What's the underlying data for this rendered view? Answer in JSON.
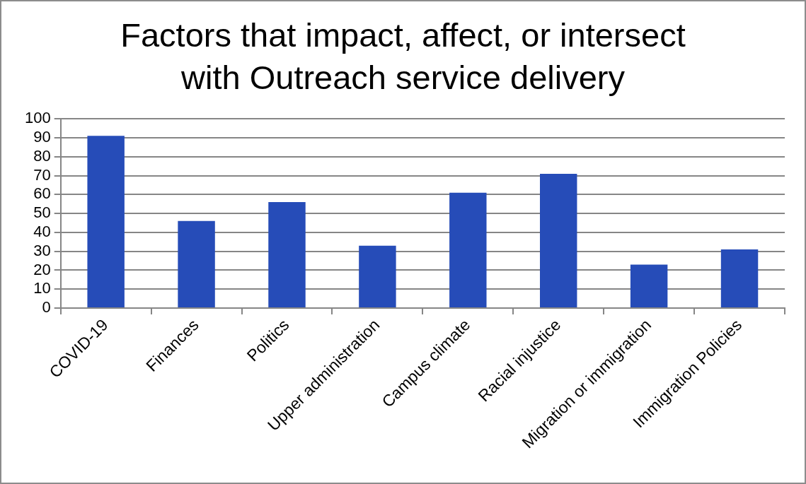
{
  "chart_data": {
    "type": "bar",
    "title": "Factors that impact, affect, or intersect with Outreach service delivery",
    "categories": [
      "COVID-19",
      "Finances",
      "Politics",
      "Upper administration",
      "Campus climate",
      "Racial injustice",
      "Migration or immigration",
      "Immigration Policies"
    ],
    "values": [
      91,
      46,
      56,
      33,
      61,
      71,
      23,
      31
    ],
    "color": "#264cb8",
    "ylim": [
      0,
      100
    ],
    "yticks": [
      0,
      10,
      20,
      30,
      40,
      50,
      60,
      70,
      80,
      90,
      100
    ],
    "grid": "y"
  }
}
